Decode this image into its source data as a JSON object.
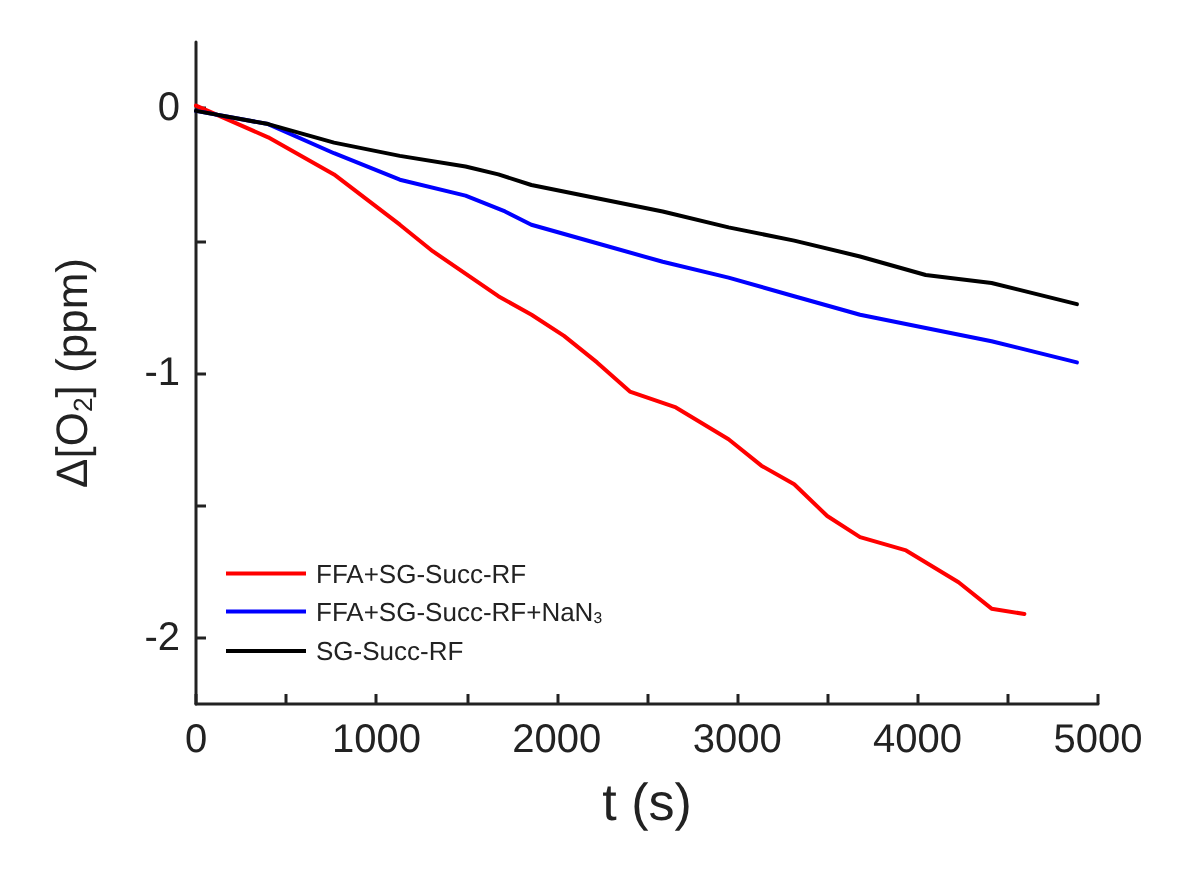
{
  "chart_data": {
    "type": "line",
    "xlabel": "t (s)",
    "ylabel": "Δ[O$_{2}$] (ppm)",
    "xlim": [
      0,
      5000
    ],
    "ylim": [
      -2.25,
      0.25
    ],
    "xticks": [
      0,
      {
        "value": 500,
        "label": null
      },
      1000,
      {
        "value": 1500,
        "label": null
      },
      2000,
      {
        "value": 2500,
        "label": null
      },
      3000,
      {
        "value": 3500,
        "label": null
      },
      4000,
      {
        "value": 4500,
        "label": null
      },
      5000
    ],
    "yticks": [
      -2,
      {
        "value": -1.5,
        "label": null
      },
      -1,
      {
        "value": -0.5,
        "label": null
      },
      0
    ],
    "grid": false,
    "legend": "bottom left",
    "marker": "none",
    "line_style": "solid",
    "series": [
      {
        "name": "FFA+SG-Succ-RF",
        "color": "#ff0000",
        "x": [
          0,
          400,
          765,
          1130,
          1312,
          1676,
          1860,
          2040,
          2223,
          2405,
          2660,
          2952,
          3134,
          3316,
          3499,
          3681,
          3936,
          4227,
          4410,
          4592
        ],
        "values": [
          0.01,
          -0.11,
          -0.25,
          -0.44,
          -0.54,
          -0.71,
          -0.78,
          -0.86,
          -0.96,
          -1.07,
          -1.13,
          -1.25,
          -1.35,
          -1.42,
          -1.54,
          -1.62,
          -1.67,
          -1.79,
          -1.89,
          -1.91
        ]
      },
      {
        "name": "FFA+SG-Succ-RF+NaN$_{3}$",
        "color": "#0000ff",
        "x": [
          0,
          400,
          765,
          1130,
          1494,
          1713,
          1859,
          2223,
          2587,
          2952,
          3316,
          3681,
          4045,
          4410,
          4883
        ],
        "values": [
          -0.01,
          -0.06,
          -0.17,
          -0.27,
          -0.33,
          -0.39,
          -0.44,
          -0.51,
          -0.58,
          -0.64,
          -0.71,
          -0.78,
          -0.83,
          -0.88,
          -0.96
        ]
      },
      {
        "name": "SG-Succ-RF",
        "color": "#000000",
        "x": [
          0,
          400,
          765,
          1130,
          1494,
          1676,
          1859,
          2223,
          2587,
          2952,
          3316,
          3681,
          4045,
          4410,
          4883
        ],
        "values": [
          -0.01,
          -0.06,
          -0.13,
          -0.18,
          -0.22,
          -0.25,
          -0.29,
          -0.34,
          -0.39,
          -0.45,
          -0.5,
          -0.56,
          -0.63,
          -0.66,
          -0.74
        ]
      }
    ]
  }
}
